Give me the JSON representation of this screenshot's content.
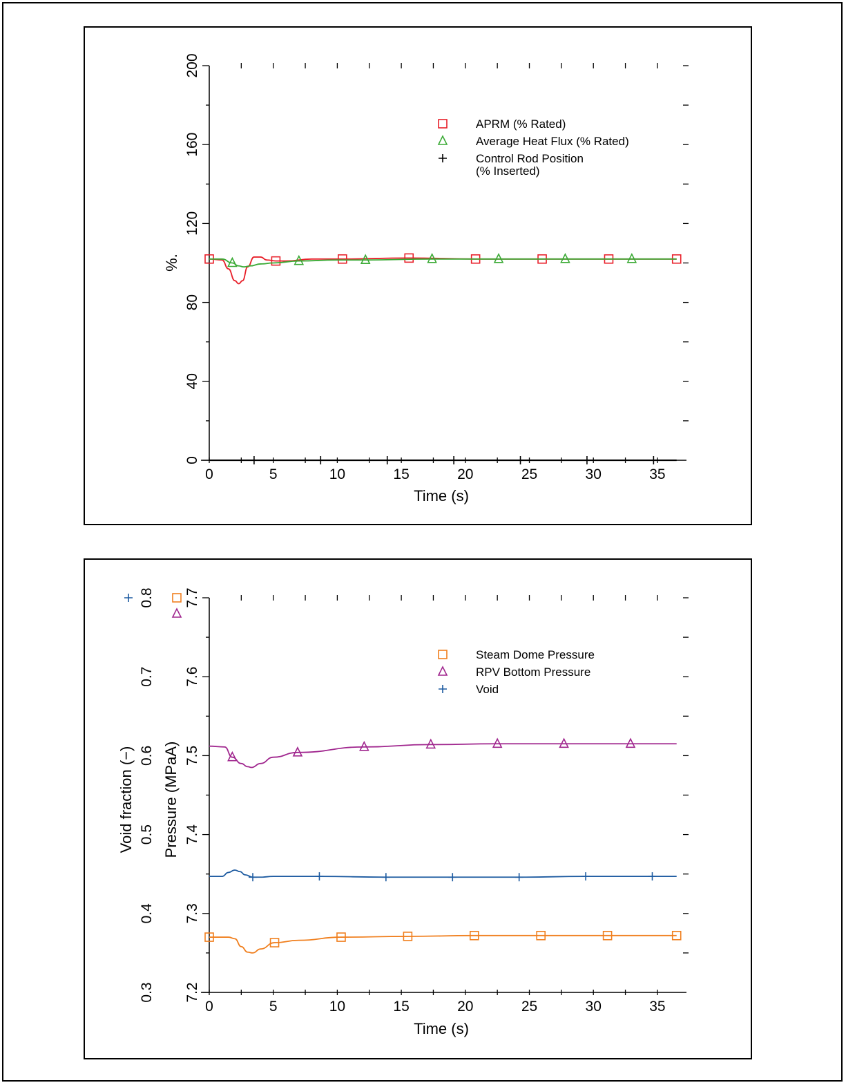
{
  "chart_data": [
    {
      "type": "line",
      "xlabel": "Time (s)",
      "ylabel": "%.",
      "xlim": [
        0,
        37
      ],
      "ylim": [
        0,
        200
      ],
      "xticks": [
        0,
        5,
        10,
        15,
        20,
        25,
        30,
        35
      ],
      "yticks": [
        0,
        40,
        80,
        120,
        160,
        200
      ],
      "grid": false,
      "legend_position": "top-right",
      "series": [
        {
          "name": "APRM (% Rated)",
          "color": "#e8202a",
          "marker": "square",
          "x": [
            0,
            1,
            1.5,
            2,
            2.3,
            2.6,
            3.0,
            3.5,
            4.0,
            4.5,
            5.2,
            6,
            8,
            10.4,
            15.6,
            20.8,
            26,
            31.2,
            36.5
          ],
          "y": [
            102,
            101.5,
            97,
            91,
            89.5,
            91,
            98,
            103,
            103,
            101.5,
            101,
            101,
            102,
            102,
            102.5,
            102,
            102,
            102,
            102
          ]
        },
        {
          "name": "Average Heat Flux (% Rated)",
          "color": "#3aaa35",
          "marker": "triangle",
          "x": [
            0,
            1,
            1.8,
            2.3,
            2.7,
            3.2,
            4,
            5,
            7,
            10,
            12.2,
            17.4,
            22.6,
            27.8,
            33,
            36.5
          ],
          "y": [
            102,
            102,
            100,
            98.5,
            98,
            98.5,
            99.5,
            100,
            101,
            101.5,
            101.5,
            102,
            102,
            102,
            102,
            102
          ]
        },
        {
          "name": "Control Rod Position\n(% Inserted)",
          "color": "#000000",
          "marker": "plus",
          "x": [
            0,
            3.5,
            8.7,
            13.9,
            19.1,
            24.3,
            29.5,
            34.7,
            36.5
          ],
          "y": [
            0,
            0,
            0,
            0,
            0,
            0,
            0,
            0,
            0
          ]
        }
      ],
      "legend": [
        {
          "label": "APRM (% Rated)",
          "marker": "square",
          "color": "#e8202a"
        },
        {
          "label": "Average Heat Flux (% Rated)",
          "marker": "triangle",
          "color": "#3aaa35"
        },
        {
          "label": "Control Rod Position",
          "label2": "(% Inserted)",
          "marker": "plus",
          "color": "#000000"
        }
      ]
    },
    {
      "type": "line",
      "xlabel": "Time (s)",
      "ylabel": "Pressure (MPaA)",
      "ylabel2": "Void fraction (−)",
      "xlim": [
        0,
        37
      ],
      "ylim": [
        7.2,
        7.7
      ],
      "ylim2": [
        0.3,
        0.8
      ],
      "xticks": [
        0,
        5,
        10,
        15,
        20,
        25,
        30,
        35
      ],
      "yticks": [
        7.2,
        7.3,
        7.4,
        7.5,
        7.6,
        7.7
      ],
      "yticks2": [
        0.3,
        0.4,
        0.5,
        0.6,
        0.7,
        0.8
      ],
      "grid": false,
      "legend_position": "top-right",
      "series": [
        {
          "name": "Steam Dome Pressure",
          "color": "#f07f1e",
          "marker": "square",
          "axis": "pressure",
          "x": [
            0,
            1.5,
            2,
            2.5,
            3.0,
            3.4,
            4.0,
            5.1,
            7,
            10.3,
            15.5,
            20.7,
            25.9,
            31.1,
            36.5
          ],
          "y": [
            7.27,
            7.27,
            7.268,
            7.258,
            7.251,
            7.25,
            7.255,
            7.263,
            7.266,
            7.27,
            7.271,
            7.272,
            7.272,
            7.272,
            7.272
          ]
        },
        {
          "name": "RPV Bottom Pressure",
          "color": "#a0268e",
          "marker": "triangle",
          "axis": "pressure",
          "x": [
            0,
            1.2,
            1.8,
            2.5,
            3.0,
            3.3,
            4.0,
            5.0,
            6.9,
            12.1,
            17.3,
            22.5,
            27.7,
            32.9,
            36.5
          ],
          "y": [
            7.512,
            7.511,
            7.498,
            7.49,
            7.486,
            7.485,
            7.49,
            7.498,
            7.504,
            7.511,
            7.514,
            7.515,
            7.515,
            7.515,
            7.515
          ]
        },
        {
          "name": "Void",
          "color": "#1c5aa0",
          "marker": "plus",
          "axis": "void",
          "x": [
            0,
            1.0,
            1.5,
            2.0,
            2.4,
            2.8,
            3.4,
            4.0,
            5,
            8.6,
            13.8,
            19.0,
            24.2,
            29.4,
            34.6,
            36.5
          ],
          "y": [
            0.447,
            0.447,
            0.452,
            0.455,
            0.453,
            0.449,
            0.446,
            0.446,
            0.447,
            0.447,
            0.446,
            0.446,
            0.446,
            0.447,
            0.447,
            0.447
          ]
        }
      ],
      "legend": [
        {
          "label": "Steam Dome Pressure",
          "marker": "square",
          "color": "#f07f1e"
        },
        {
          "label": "RPV Bottom Pressure",
          "marker": "triangle",
          "color": "#a0268e"
        },
        {
          "label": "Void",
          "marker": "plus",
          "color": "#1c5aa0"
        }
      ]
    }
  ]
}
